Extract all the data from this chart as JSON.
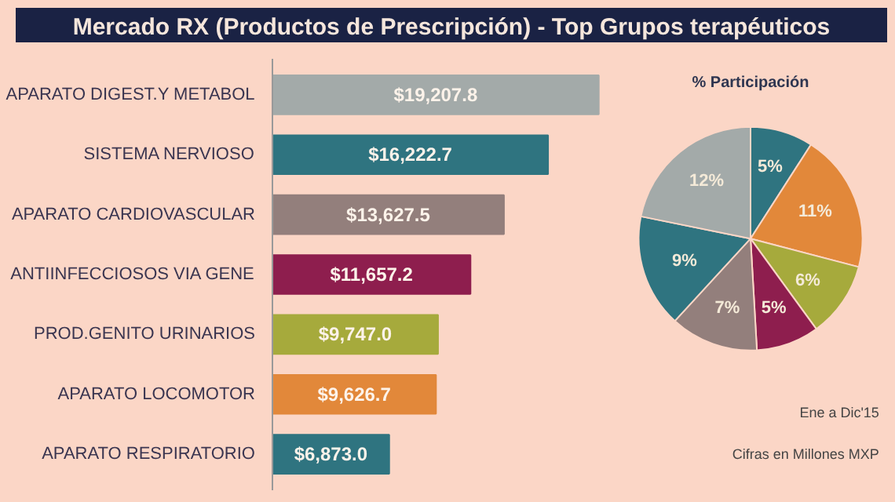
{
  "chart_data": [
    {
      "type": "bar",
      "orientation": "horizontal",
      "title": "Mercado RX (Productos de Prescripción) - Top Grupos terapéuticos",
      "categories": [
        "APARATO DIGEST.Y METABOL",
        "SISTEMA NERVIOSO",
        "APARATO CARDIOVASCULAR",
        "ANTIINFECCIOSOS VIA GENE",
        "PROD.GENITO URINARIOS",
        "APARATO LOCOMOTOR",
        "APARATO RESPIRATORIO"
      ],
      "values": [
        19207.8,
        16222.7,
        13627.5,
        11657.2,
        9747.0,
        9626.7,
        6873.0
      ],
      "colors": [
        "#a3aaa9",
        "#2f7480",
        "#937f7c",
        "#8e1e4e",
        "#a6aa3c",
        "#e2883a",
        "#2f7480"
      ],
      "value_labels": [
        "$19,207.8",
        "$16,222.7",
        "$13,627.5",
        "$11,657.2",
        "$9,747.0",
        "$9,626.7",
        "$6,873.0"
      ]
    },
    {
      "type": "pie",
      "title": "% Participación",
      "categories": [
        null,
        null,
        null,
        null,
        null,
        null,
        null
      ],
      "values": [
        5,
        11,
        6,
        5,
        7,
        9,
        12
      ],
      "value_labels": [
        "5%",
        "11%",
        "6%",
        "5%",
        "7%",
        "9%",
        "12%"
      ],
      "colors": [
        "#2f7480",
        "#e2883a",
        "#a6aa3c",
        "#8e1e4e",
        "#937f7c",
        "#2f7480",
        "#a3aaa9"
      ],
      "annotations": [
        "Ene a Dic'15",
        "Cifras en Millones MXP"
      ]
    }
  ]
}
